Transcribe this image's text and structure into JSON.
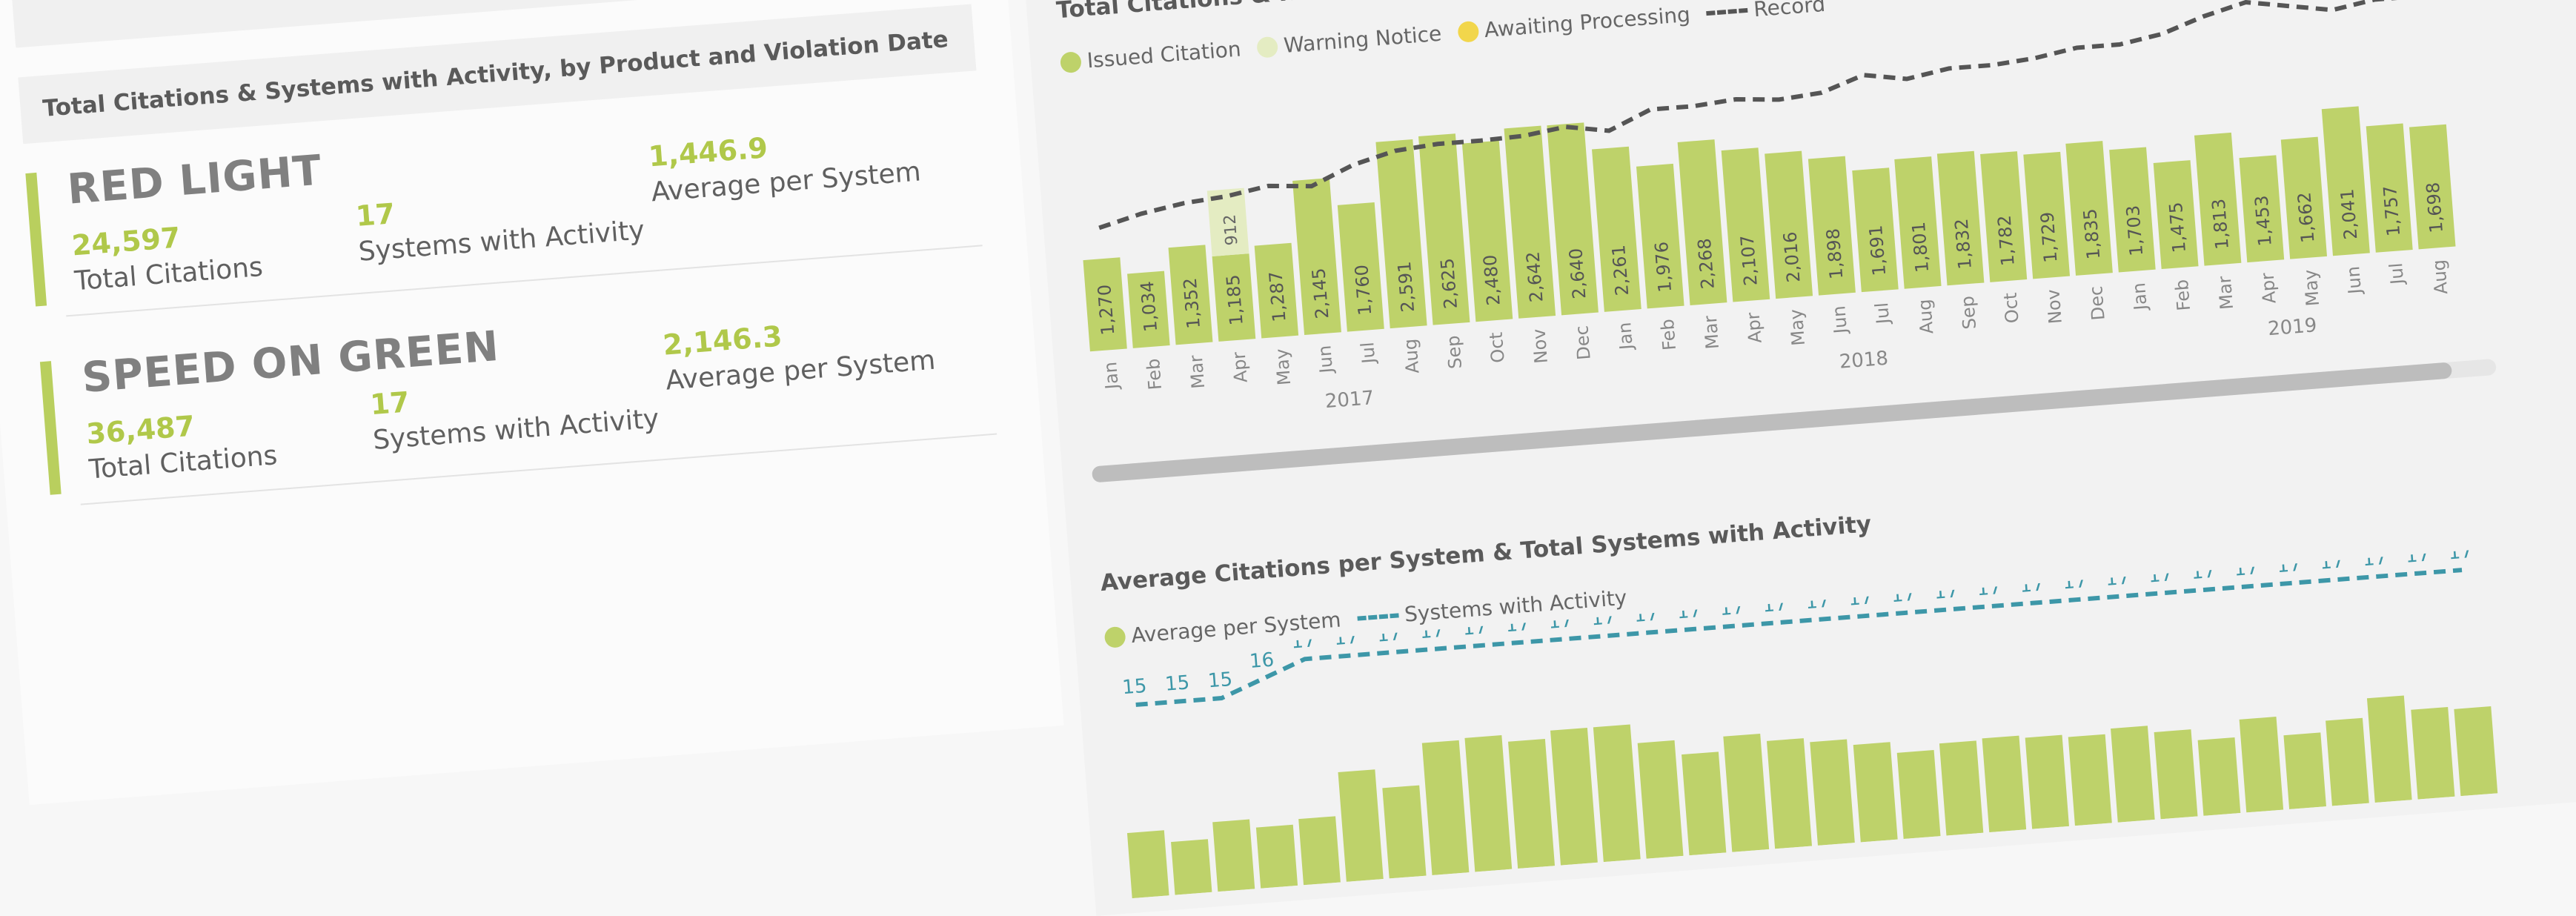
{
  "left": {
    "section_title": "Total Citations & Systems with Activity, by Product and Violation Date",
    "products": [
      {
        "name": "RED LIGHT",
        "total_citations": "24,597",
        "total_citations_label": "Total Citations",
        "systems": "17",
        "systems_label": "Systems with Activity",
        "average": "1,446.9",
        "average_label": "Average per System"
      },
      {
        "name": "SPEED ON GREEN",
        "total_citations": "36,487",
        "total_citations_label": "Total Citations",
        "systems": "17",
        "systems_label": "Systems with Activity",
        "average": "2,146.3",
        "average_label": "Average per System"
      }
    ]
  },
  "colors": {
    "bar": "#bed26a",
    "warning": "#e4ecc2",
    "awaiting": "#f2d64b",
    "trend": "#555555",
    "systems": "#3d97a8"
  },
  "chart1": {
    "title": "Total Citations & R",
    "legend": [
      {
        "label": "Issued Citation",
        "icon": "dot",
        "color": "#bed26a"
      },
      {
        "label": "Warning Notice",
        "icon": "dot",
        "color": "#e4ecc2"
      },
      {
        "label": "Awaiting Processing",
        "icon": "dot",
        "color": "#f2d64b"
      },
      {
        "label": "Record",
        "icon": "dash",
        "color": "#555555"
      }
    ]
  },
  "chart_data": [
    {
      "type": "bar",
      "categories": [
        "Jan",
        "Feb",
        "Mar",
        "Apr",
        "May",
        "Jun",
        "Jul",
        "Aug",
        "Sep",
        "Oct",
        "Nov",
        "Dec",
        "Jan",
        "Feb",
        "Mar",
        "Apr",
        "May",
        "Jun",
        "Jul",
        "Aug",
        "Sep",
        "Oct",
        "Nov",
        "Dec",
        "Jan",
        "Feb",
        "Mar",
        "Apr",
        "May",
        "Jun",
        "Jul",
        "Aug"
      ],
      "years": [
        {
          "label": "2017",
          "start": 0,
          "end": 11
        },
        {
          "label": "2018",
          "start": 12,
          "end": 23
        },
        {
          "label": "2019",
          "start": 24,
          "end": 31
        }
      ],
      "series": [
        {
          "name": "Issued Citation",
          "values": [
            1270,
            1034,
            1352,
            1185,
            1287,
            2145,
            1760,
            2591,
            2625,
            2480,
            2642,
            2640,
            2261,
            1976,
            2268,
            2107,
            2016,
            1898,
            1691,
            1801,
            1832,
            1782,
            1729,
            1835,
            1703,
            1475,
            1813,
            1453,
            1662,
            2041,
            1757,
            1698
          ]
        },
        {
          "name": "Warning Notice",
          "values": [
            0,
            0,
            0,
            912,
            0,
            0,
            0,
            0,
            0,
            0,
            0,
            0,
            0,
            0,
            0,
            0,
            0,
            0,
            0,
            0,
            0,
            0,
            0,
            0,
            0,
            0,
            0,
            0,
            0,
            0,
            0,
            0
          ]
        }
      ],
      "data_labels": [
        "1,270",
        "1,034",
        "1,352",
        "1,185",
        "1,287",
        "2,145",
        "1,760",
        "2,591",
        "2,625",
        "2,480",
        "2,642",
        "2,640",
        "2,261",
        "1,976",
        "2,268",
        "2,107",
        "2,016",
        "1,898",
        "1,691",
        "1,801",
        "1,832",
        "1,782",
        "1,729",
        "1,835",
        "1,703",
        "1,475",
        "1,813",
        "1,453",
        "1,662",
        "2,041",
        "1,757",
        "1,698"
      ],
      "warning_label": "912",
      "trend_line": [
        1700,
        1850,
        1950,
        2000,
        2100,
        2050,
        2300,
        2450,
        2500,
        2500,
        2520,
        2600,
        2500,
        2750,
        2750,
        2800,
        2750,
        2800,
        3000,
        2900,
        3000,
        3000,
        3050,
        3150,
        3150,
        3250,
        3450,
        3600,
        3500,
        3400,
        3500,
        3500
      ]
    },
    {
      "type": "bar",
      "title": "Average Citations per System & Total Systems with Activity",
      "legend": [
        {
          "label": "Average per System",
          "icon": "dot",
          "color": "#bed26a"
        },
        {
          "label": "Systems with Activity",
          "icon": "dash",
          "color": "#3d97a8"
        }
      ],
      "systems_values": [
        15,
        15,
        15,
        16,
        17,
        17,
        17,
        17,
        17,
        17,
        17,
        17,
        17,
        17,
        17,
        17,
        17,
        17,
        17,
        17,
        17,
        17,
        17,
        17,
        17,
        17,
        17,
        17,
        17,
        17,
        17,
        17
      ],
      "systems_labels": [
        "15",
        "15",
        "15",
        "16",
        "17",
        "17",
        "17",
        "17",
        "17",
        "17",
        "17",
        "17",
        "17",
        "17",
        "17",
        "17",
        "17",
        "17",
        "17",
        "17",
        "17",
        "17",
        "17",
        "17",
        "17",
        "17",
        "17",
        "17",
        "17",
        "17",
        "17",
        "17"
      ],
      "average_values": [
        75,
        61,
        80,
        70,
        76,
        126,
        104,
        152,
        154,
        146,
        155,
        155,
        133,
        116,
        133,
        124,
        119,
        112,
        99,
        106,
        108,
        105,
        102,
        108,
        100,
        87,
        107,
        85,
        98,
        120,
        103,
        100
      ]
    }
  ]
}
